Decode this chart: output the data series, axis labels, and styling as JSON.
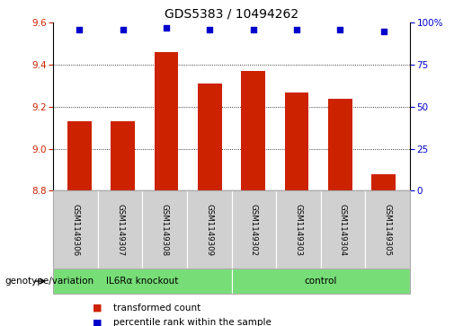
{
  "title": "GDS5383 / 10494262",
  "samples": [
    "GSM1149306",
    "GSM1149307",
    "GSM1149308",
    "GSM1149309",
    "GSM1149302",
    "GSM1149303",
    "GSM1149304",
    "GSM1149305"
  ],
  "bar_values": [
    9.13,
    9.13,
    9.46,
    9.31,
    9.37,
    9.27,
    9.24,
    8.88
  ],
  "percentile_values": [
    96,
    96,
    97,
    96,
    96,
    96,
    96,
    95
  ],
  "bar_bottom": 8.8,
  "ylim_left": [
    8.8,
    9.6
  ],
  "ylim_right": [
    0,
    100
  ],
  "yticks_left": [
    8.8,
    9.0,
    9.2,
    9.4,
    9.6
  ],
  "yticks_right": [
    0,
    25,
    50,
    75,
    100
  ],
  "grid_values": [
    9.0,
    9.2,
    9.4
  ],
  "bar_color": "#cc2200",
  "percentile_color": "#0000cc",
  "group1_label": "IL6Rα knockout",
  "group2_label": "control",
  "group_color": "#77dd77",
  "group_row_label": "genotype/variation",
  "legend_bar_label": "transformed count",
  "legend_pct_label": "percentile rank within the sample",
  "sample_box_color": "#d0d0d0",
  "axis_bg": "#ffffff",
  "title_fontsize": 10,
  "tick_fontsize": 7.5,
  "label_fontsize": 7.5
}
